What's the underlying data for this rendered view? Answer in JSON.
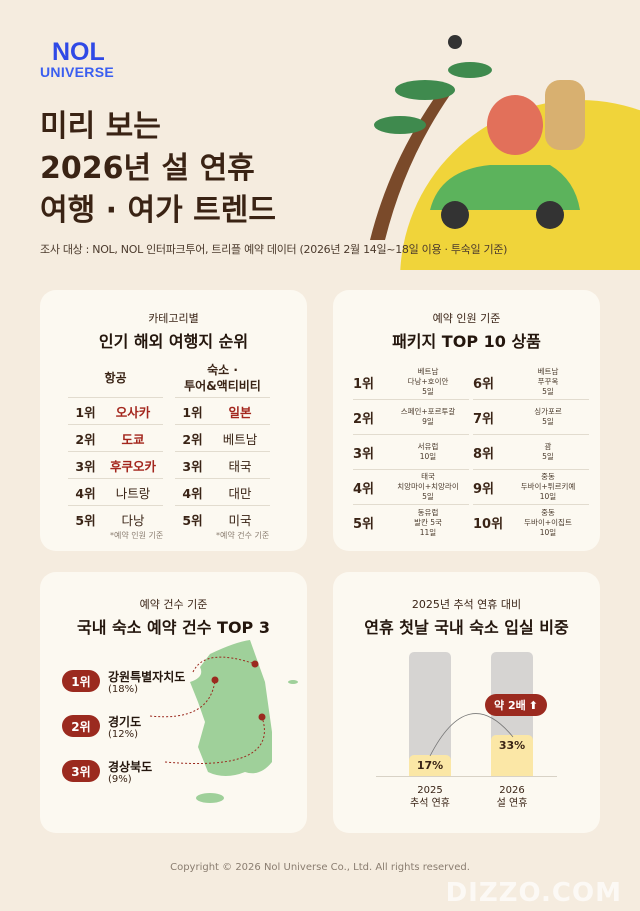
{
  "brand": {
    "logo_top": "NOL",
    "logo_bottom": "UNIVERSE",
    "color": "#2f49e6"
  },
  "header": {
    "title_lines": [
      "미리 보는",
      "2026년 설 연휴",
      "여행 · 여가 트렌드"
    ],
    "subtitle": "조사 대상 : NOL, NOL 인터파크투어, 트리플 예약 데이터 (2026년 2월 14일~18일 이용 · 투숙일 기준)"
  },
  "colors": {
    "accent_red": "#9b2a1f",
    "title_brown": "#3a2314",
    "yellow": "#f0d43a",
    "map_green": "#9fd09a",
    "background": "#f5ecdf"
  },
  "overseas": {
    "kicker": "카테고리별",
    "title": "인기 해외 여행지 순위",
    "air": {
      "header": "항공",
      "note": "*예약 인원 기준",
      "items": [
        {
          "rank": "1위",
          "name": "오사카",
          "highlight": true
        },
        {
          "rank": "2위",
          "name": "도쿄",
          "highlight": true
        },
        {
          "rank": "3위",
          "name": "후쿠오카",
          "highlight": true
        },
        {
          "rank": "4위",
          "name": "나트랑",
          "highlight": false
        },
        {
          "rank": "5위",
          "name": "다낭",
          "highlight": false
        }
      ]
    },
    "stay": {
      "header": "숙소 ·\n투어&액티비티",
      "note": "*예약 건수 기준",
      "items": [
        {
          "rank": "1위",
          "name": "일본",
          "highlight": true
        },
        {
          "rank": "2위",
          "name": "베트남",
          "highlight": false
        },
        {
          "rank": "3위",
          "name": "태국",
          "highlight": false
        },
        {
          "rank": "4위",
          "name": "대만",
          "highlight": false
        },
        {
          "rank": "5위",
          "name": "미국",
          "highlight": false
        }
      ]
    }
  },
  "packages": {
    "kicker": "예약 인원 기준",
    "title": "패키지 TOP 10 상품",
    "items": [
      {
        "rank": "1위",
        "name": "베트남\n다낭+호이안\n5일"
      },
      {
        "rank": "2위",
        "name": "스페인+포르투갈\n9일"
      },
      {
        "rank": "3위",
        "name": "서유럽\n10일"
      },
      {
        "rank": "4위",
        "name": "태국\n치앙마이+치앙라이\n5일"
      },
      {
        "rank": "5위",
        "name": "동유럽\n발칸 5국\n11일"
      },
      {
        "rank": "6위",
        "name": "베트남\n푸꾸옥\n5일"
      },
      {
        "rank": "7위",
        "name": "싱가포르\n5일"
      },
      {
        "rank": "8위",
        "name": "괌\n5일"
      },
      {
        "rank": "9위",
        "name": "중동\n두바이+튀르키예\n10일"
      },
      {
        "rank": "10위",
        "name": "중동\n두바이+이집트\n10일"
      }
    ]
  },
  "domestic": {
    "kicker": "예약 건수 기준",
    "title": "국내 숙소 예약 건수 TOP 3",
    "items": [
      {
        "rank": "1위",
        "name": "강원특별자치도",
        "pct": "(18%)"
      },
      {
        "rank": "2위",
        "name": "경기도",
        "pct": "(12%)"
      },
      {
        "rank": "3위",
        "name": "경상북도",
        "pct": "(9%)"
      }
    ]
  },
  "chart_data": {
    "type": "bar",
    "kicker": "2025년 추석 연휴 대비",
    "title": "연휴 첫날 국내 숙소 입실 비중",
    "categories": [
      "2025\n추석 연휴",
      "2026\n설 연휴"
    ],
    "values": [
      17,
      33
    ],
    "value_labels": [
      "17%",
      "33%"
    ],
    "ylim": [
      0,
      100
    ],
    "annotation": "약 2배",
    "bar_color": "#fbe7a6",
    "track_color": "#d6d4d2"
  },
  "footer": {
    "copyright": "Copyright © 2026 Nol Universe Co., Ltd. All rights reserved.",
    "watermark": "DIZZO.COM"
  }
}
